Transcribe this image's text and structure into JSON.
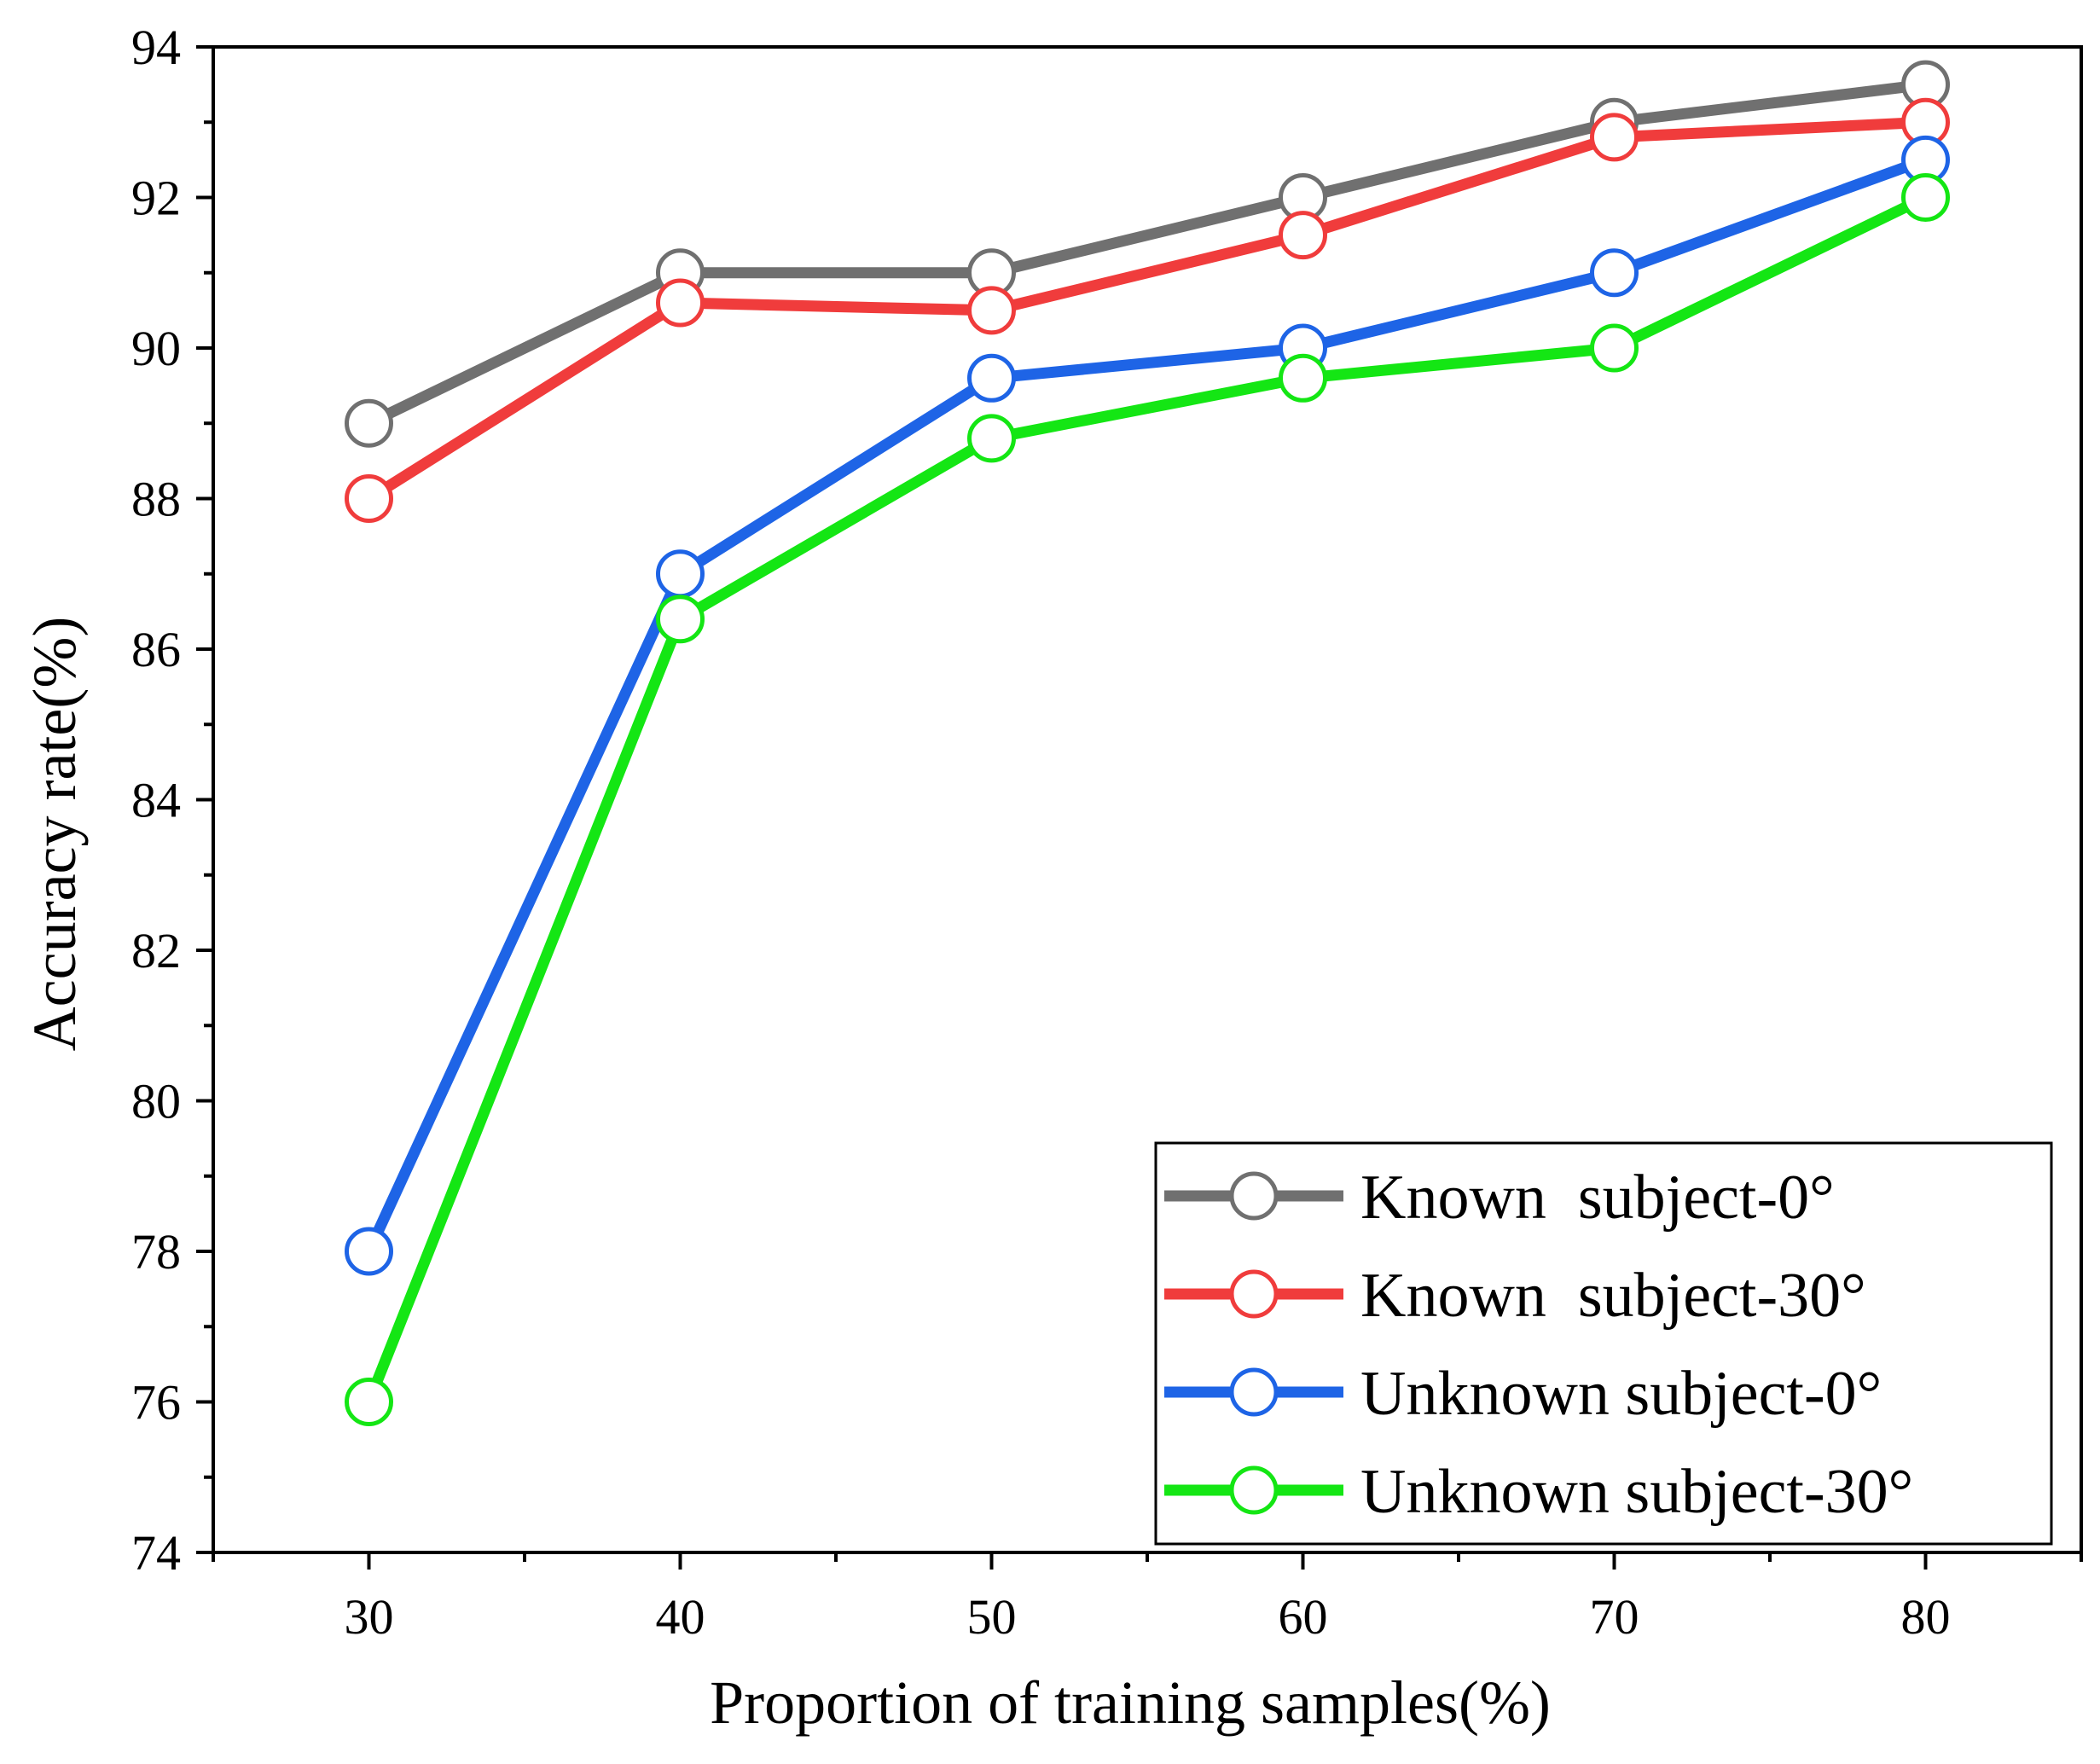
{
  "chart_data": {
    "type": "line",
    "title": "",
    "xlabel": "Proportion of training samples(%)",
    "ylabel": "Accuracy rate(%)",
    "xlim": [
      25,
      85
    ],
    "ylim": [
      74,
      94
    ],
    "xticks": [
      30,
      40,
      50,
      60,
      70,
      80
    ],
    "yticks": [
      74,
      76,
      78,
      80,
      82,
      84,
      86,
      88,
      90,
      92,
      94
    ],
    "x": [
      30,
      40,
      50,
      60,
      70,
      80
    ],
    "grid": false,
    "legend_position": "bottom-right",
    "series": [
      {
        "name": "Known  subject-0°",
        "color": "#707070",
        "marker": "open-circle",
        "values": [
          89,
          91,
          91,
          92,
          93,
          93.5
        ]
      },
      {
        "name": "Known  subject-30°",
        "color": "#f03c3c",
        "marker": "open-circle",
        "values": [
          88,
          90.6,
          90.5,
          91.5,
          92.8,
          93
        ]
      },
      {
        "name": "Unknown subject-0°",
        "color": "#1e64e6",
        "marker": "open-circle",
        "values": [
          78,
          87,
          89.6,
          90,
          91,
          92.5
        ]
      },
      {
        "name": "Unknown subject-30°",
        "color": "#14e614",
        "marker": "open-circle",
        "values": [
          76,
          86.4,
          88.8,
          89.6,
          90,
          92
        ]
      }
    ]
  }
}
